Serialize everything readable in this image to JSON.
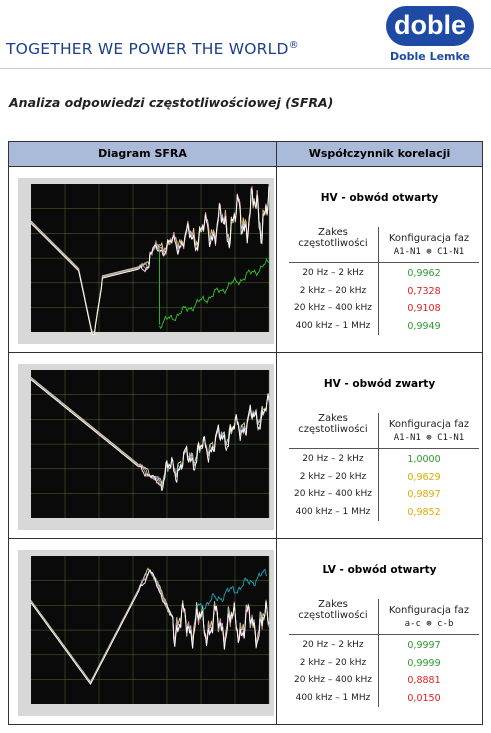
{
  "header": {
    "slogan": "TOGETHER WE POWER THE WORLD",
    "trademark": "®",
    "logo": "doble",
    "company": "Doble Lemke"
  },
  "title": "Analiza odpowiedzi częstotliwościowej (SFRA)",
  "table": {
    "columns": [
      "Diagram SFRA",
      "Współczynnik korelacji"
    ],
    "sections": [
      {
        "heading": "HV - obwód otwarty",
        "range_header": "Zakes częstotliwości",
        "config_header": "Konfiguracja faz",
        "config": "A1-N1 ⊛ C1-N1",
        "rows": [
          {
            "range": "20 Hz – 2 kHz",
            "value": "0,9962",
            "color": "#2e9b2e"
          },
          {
            "range": "2 kHz – 20 kHz",
            "value": "0,7328",
            "color": "#e02020"
          },
          {
            "range": "20 kHz – 400 kHz",
            "value": "0,9108",
            "color": "#e02020"
          },
          {
            "range": "400 kHz – 1 MHz",
            "value": "0,9949",
            "color": "#2e9b2e"
          }
        ]
      },
      {
        "heading": "HV - obwód zwarty",
        "range_header": "Zakes częstotliwości",
        "config_header": "Konfiguracja faz",
        "config": "A1-N1 ⊛ C1-N1",
        "rows": [
          {
            "range": "20 Hz – 2 kHz",
            "value": "1,0000",
            "color": "#2e9b2e"
          },
          {
            "range": "2 kHz – 20 kHz",
            "value": "0,9629",
            "color": "#e0a800"
          },
          {
            "range": "20 kHz – 400 kHz",
            "value": "0,9897",
            "color": "#e0a800"
          },
          {
            "range": "400 kHz – 1 MHz",
            "value": "0,9852",
            "color": "#e0a800"
          }
        ]
      },
      {
        "heading": "LV - obwód otwarty",
        "range_header": "Zakes częstotliwości",
        "config_header": "Konfiguracja faz",
        "config": "a-c ⊛ c-b",
        "rows": [
          {
            "range": "20 Hz – 2 kHz",
            "value": "0,9997",
            "color": "#2e9b2e"
          },
          {
            "range": "2 kHz – 20 kHz",
            "value": "0,9999",
            "color": "#2e9b2e"
          },
          {
            "range": "20 kHz – 400 kHz",
            "value": "0,8881",
            "color": "#e02020"
          },
          {
            "range": "400 kHz – 1 MHz",
            "value": "0,0150",
            "color": "#e02020"
          }
        ]
      }
    ]
  }
}
